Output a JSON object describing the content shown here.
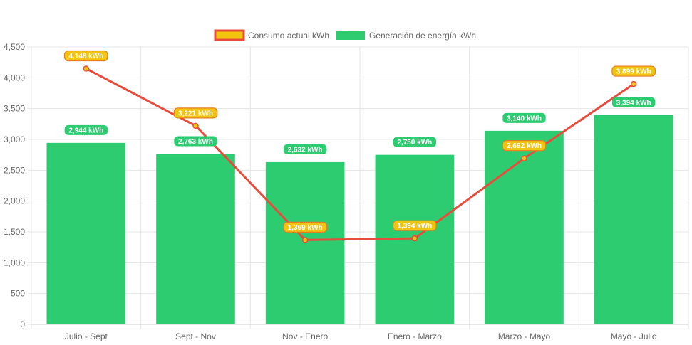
{
  "chart_data": {
    "type": "bar",
    "categories": [
      "Julio - Sept",
      "Sept - Nov",
      "Nov - Enero",
      "Enero - Marzo",
      "Marzo - Mayo",
      "Mayo - Julio"
    ],
    "series": [
      {
        "name": "Consumo actual kWh",
        "type": "line",
        "values": [
          4148,
          3221,
          1369,
          1394,
          2692,
          3899
        ],
        "labels": [
          "4,148 kWh",
          "3,221 kWh",
          "1,369 kWh",
          "1,394 kWh",
          "2,692 kWh",
          "3,899 kWh"
        ],
        "color": "#e74c3c",
        "fill": "#f1c40f"
      },
      {
        "name": "Generación de energía kWh",
        "type": "bar",
        "values": [
          2944,
          2763,
          2632,
          2750,
          3140,
          3394
        ],
        "labels": [
          "2,944 kWh",
          "2,763 kWh",
          "2,632 kWh",
          "2,750 kWh",
          "3,140 kWh",
          "3,394 kWh"
        ],
        "color": "#2ecc71"
      }
    ],
    "yticks": [
      "0",
      "500",
      "1,000",
      "1,500",
      "2,000",
      "2,500",
      "3,000",
      "3,500",
      "4,000",
      "4,500"
    ],
    "ylim": [
      0,
      4500
    ],
    "grid": true,
    "legend": "top-center"
  }
}
